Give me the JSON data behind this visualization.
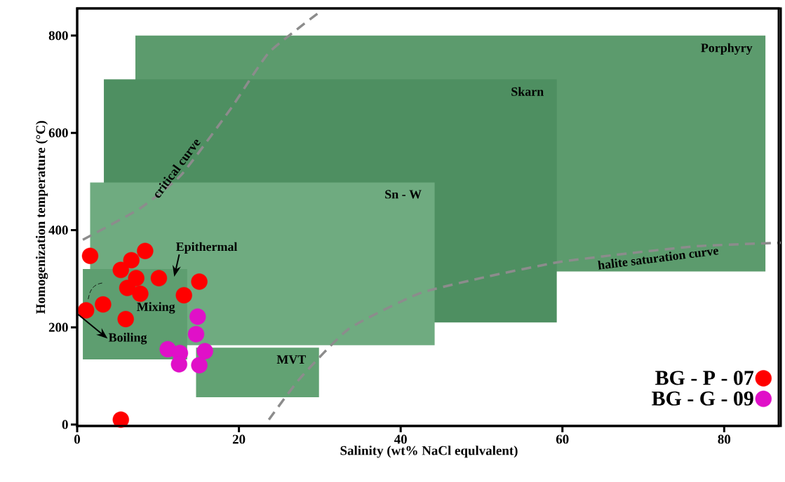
{
  "chart_data": {
    "type": "scatter",
    "xlabel": "Salinity (wt% NaCl equlvalent)",
    "ylabel": "Homogenization temperature (°C)",
    "xlim": [
      0,
      87
    ],
    "ylim": [
      -3,
      856
    ],
    "xticks": [
      0,
      20,
      40,
      60,
      80
    ],
    "yticks": [
      0,
      200,
      400,
      600,
      800
    ],
    "grid": false,
    "legend": "bottom right",
    "series": [
      {
        "type": "area",
        "name": "Porphyry",
        "color": "#5c9b6d",
        "x": [
          7.2,
          85.1,
          85.1
        ],
        "values": [
          800,
          800,
          315
        ]
      },
      {
        "type": "area",
        "name": "Skarn",
        "color": "#4e8f61",
        "x": [
          3.3,
          59.3,
          59.3
        ],
        "values": [
          710,
          710,
          210
        ]
      },
      {
        "type": "area",
        "name": "Sn - W",
        "color": "#6fab80",
        "x": [
          1.6,
          44.2,
          44.2
        ],
        "values": [
          498,
          498,
          163
        ]
      },
      {
        "type": "area",
        "name": "Epithermal",
        "color": "#5e9e70",
        "x": [
          0.7,
          13.6,
          13.6,
          0.7
        ],
        "values": [
          320,
          320,
          134,
          134
        ]
      },
      {
        "type": "area",
        "name": "MVT",
        "color": "#62a273",
        "x": [
          14.7,
          29.9,
          29.9,
          14.7
        ],
        "values": [
          158,
          158,
          56,
          56
        ]
      },
      {
        "type": "line",
        "name": "critical curve",
        "color": "#8c8c8c",
        "line_style": "dashed",
        "x": [
          0.7,
          7.8,
          12.9,
          19.0,
          23.7,
          29.7
        ],
        "values": [
          380,
          445,
          514,
          650,
          765,
          845
        ]
      },
      {
        "type": "line",
        "name": "halite saturation curve",
        "color": "#8c8c8c",
        "line_style": "dashed",
        "x": [
          23.7,
          27.6,
          33.6,
          42.2,
          50.9,
          59.5,
          68.1,
          76.7,
          87
        ],
        "values": [
          10,
          96,
          197,
          269,
          305,
          334,
          352,
          367,
          374
        ]
      },
      {
        "name": "BG - P - 07",
        "color": "#ff0000",
        "marker": "circle",
        "x": [
          1.6,
          8.4,
          6.7,
          5.4,
          7.3,
          10.1,
          6.2,
          7.8,
          3.2,
          1.1,
          6.0,
          13.2,
          15.1,
          5.4
        ],
        "values": [
          347,
          357,
          338,
          318,
          301,
          301,
          281,
          269,
          247,
          235,
          217,
          266,
          294,
          10
        ]
      },
      {
        "name": "BG - G - 09",
        "color": "#e010c8",
        "marker": "circle",
        "x": [
          11.2,
          12.7,
          14.9,
          14.7,
          15.8,
          12.6,
          15.1
        ],
        "values": [
          155,
          147,
          222,
          186,
          151,
          124,
          122
        ]
      }
    ],
    "annotations": [
      "Mixing",
      "Boiling"
    ]
  }
}
